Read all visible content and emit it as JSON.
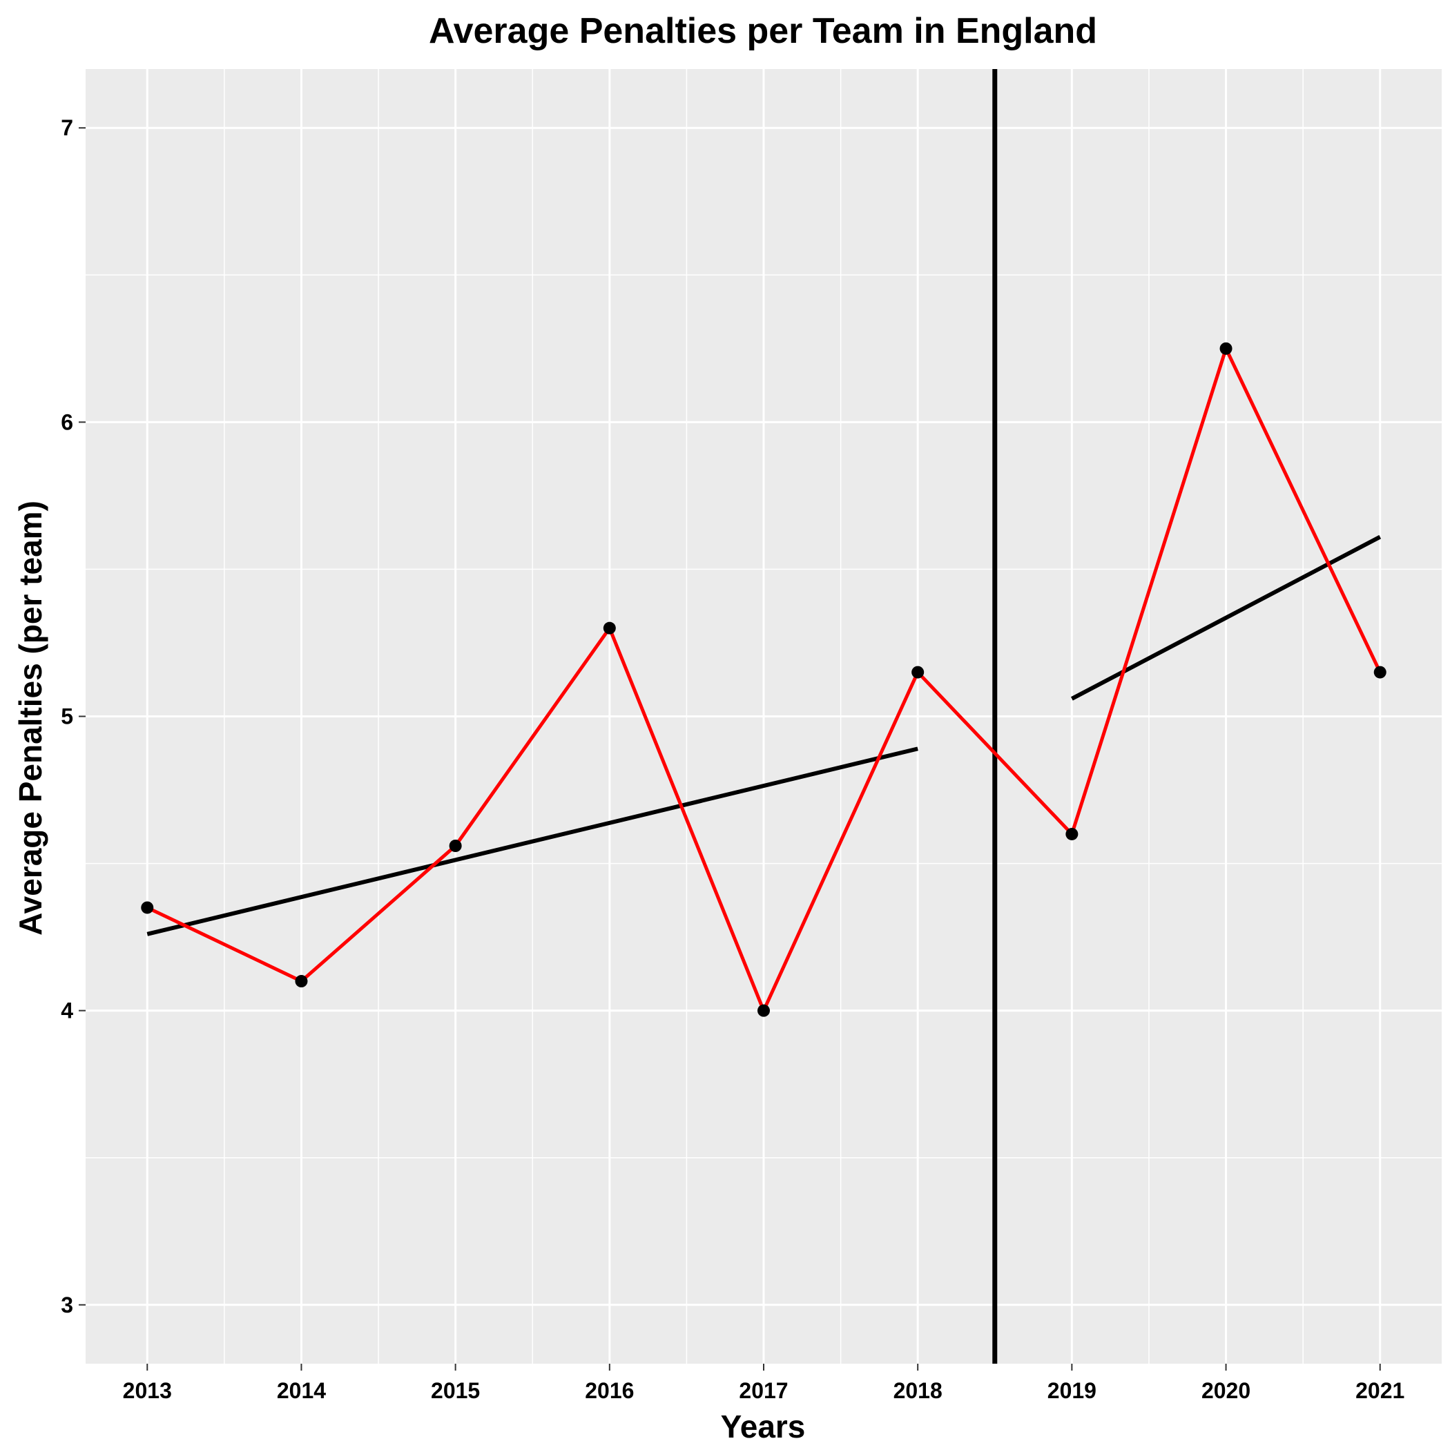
{
  "chart_data": {
    "type": "line",
    "title": "Average Penalties per Team in England",
    "xlabel": "Years",
    "ylabel": "Average Penalties (per team)",
    "x": [
      2013,
      2014,
      2015,
      2016,
      2017,
      2018,
      2019,
      2020,
      2021
    ],
    "xlim": [
      2012.6,
      2021.4
    ],
    "ylim": [
      2.8,
      7.2
    ],
    "yticks": [
      3,
      4,
      5,
      6,
      7
    ],
    "grid": true,
    "series": [
      {
        "values": [
          4.35,
          4.1,
          4.56,
          5.3,
          4.0,
          5.15,
          4.6,
          6.25,
          5.15
        ],
        "color": "#ff0000",
        "marker_color": "#000000"
      }
    ],
    "trend_lines": [
      {
        "x": [
          2013,
          2018
        ],
        "y": [
          4.26,
          4.89
        ],
        "color": "#000000"
      },
      {
        "x": [
          2019,
          2021
        ],
        "y": [
          5.06,
          5.61
        ],
        "color": "#000000"
      }
    ],
    "vertical_line": {
      "x": 2018.5,
      "color": "#000000"
    },
    "colors": {
      "panel_background": "#ebebeb",
      "grid": "#ffffff",
      "series_line": "#ff0000",
      "points": "#000000",
      "trend": "#000000"
    }
  }
}
